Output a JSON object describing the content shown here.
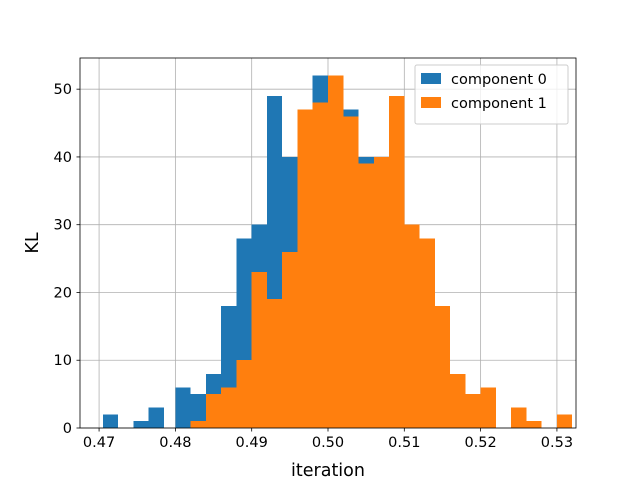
{
  "chart_data": {
    "type": "bar",
    "title": "",
    "xlabel": "iteration",
    "ylabel": "KL",
    "xlim": [
      0.4675,
      0.5325
    ],
    "ylim": [
      0,
      54.6
    ],
    "xticks": [
      0.47,
      0.48,
      0.49,
      0.5,
      0.51,
      0.52,
      0.53
    ],
    "xtick_labels": [
      "0.47",
      "0.48",
      "0.49",
      "0.50",
      "0.51",
      "0.52",
      "0.53"
    ],
    "yticks": [
      0,
      10,
      20,
      30,
      40,
      50
    ],
    "ytick_labels": [
      "0",
      "10",
      "20",
      "30",
      "40",
      "50"
    ],
    "grid": true,
    "legend_position": "top-right",
    "series": [
      {
        "name": "component 0",
        "color": "#1f77b4",
        "bins": [
          {
            "x0": 0.4705,
            "x1": 0.4725,
            "count": 2
          },
          {
            "x0": 0.4745,
            "x1": 0.4765,
            "count": 1
          },
          {
            "x0": 0.4765,
            "x1": 0.4785,
            "count": 3
          },
          {
            "x0": 0.48,
            "x1": 0.482,
            "count": 6
          },
          {
            "x0": 0.482,
            "x1": 0.484,
            "count": 5
          },
          {
            "x0": 0.484,
            "x1": 0.486,
            "count": 8
          },
          {
            "x0": 0.486,
            "x1": 0.488,
            "count": 18
          },
          {
            "x0": 0.488,
            "x1": 0.49,
            "count": 28
          },
          {
            "x0": 0.49,
            "x1": 0.492,
            "count": 30
          },
          {
            "x0": 0.492,
            "x1": 0.494,
            "count": 49
          },
          {
            "x0": 0.494,
            "x1": 0.496,
            "count": 40
          },
          {
            "x0": 0.496,
            "x1": 0.498,
            "count": 43
          },
          {
            "x0": 0.498,
            "x1": 0.5,
            "count": 52
          },
          {
            "x0": 0.5,
            "x1": 0.502,
            "count": 48
          },
          {
            "x0": 0.502,
            "x1": 0.504,
            "count": 47
          },
          {
            "x0": 0.504,
            "x1": 0.506,
            "count": 40
          },
          {
            "x0": 0.506,
            "x1": 0.508,
            "count": 38
          }
        ]
      },
      {
        "name": "component 1",
        "color": "#ff7f0e",
        "bins": [
          {
            "x0": 0.482,
            "x1": 0.484,
            "count": 1
          },
          {
            "x0": 0.484,
            "x1": 0.486,
            "count": 5
          },
          {
            "x0": 0.486,
            "x1": 0.488,
            "count": 6
          },
          {
            "x0": 0.488,
            "x1": 0.49,
            "count": 10
          },
          {
            "x0": 0.49,
            "x1": 0.492,
            "count": 23
          },
          {
            "x0": 0.492,
            "x1": 0.494,
            "count": 19
          },
          {
            "x0": 0.494,
            "x1": 0.496,
            "count": 26
          },
          {
            "x0": 0.496,
            "x1": 0.498,
            "count": 47
          },
          {
            "x0": 0.498,
            "x1": 0.5,
            "count": 48
          },
          {
            "x0": 0.5,
            "x1": 0.502,
            "count": 52
          },
          {
            "x0": 0.502,
            "x1": 0.504,
            "count": 46
          },
          {
            "x0": 0.504,
            "x1": 0.506,
            "count": 39
          },
          {
            "x0": 0.506,
            "x1": 0.508,
            "count": 40
          },
          {
            "x0": 0.508,
            "x1": 0.51,
            "count": 49
          },
          {
            "x0": 0.51,
            "x1": 0.512,
            "count": 30
          },
          {
            "x0": 0.512,
            "x1": 0.514,
            "count": 28
          },
          {
            "x0": 0.514,
            "x1": 0.516,
            "count": 18
          },
          {
            "x0": 0.516,
            "x1": 0.518,
            "count": 8
          },
          {
            "x0": 0.518,
            "x1": 0.52,
            "count": 5
          },
          {
            "x0": 0.52,
            "x1": 0.522,
            "count": 6
          },
          {
            "x0": 0.524,
            "x1": 0.526,
            "count": 3
          },
          {
            "x0": 0.526,
            "x1": 0.528,
            "count": 1
          },
          {
            "x0": 0.53,
            "x1": 0.532,
            "count": 2
          }
        ]
      }
    ]
  }
}
